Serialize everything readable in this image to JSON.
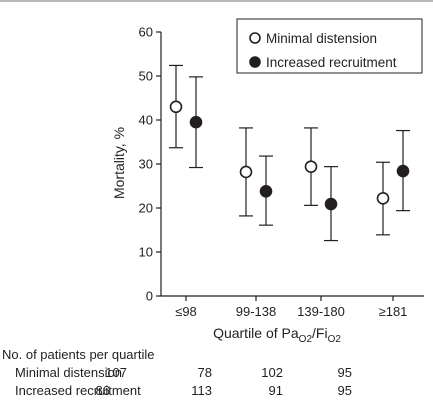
{
  "chart_data": {
    "type": "scatter",
    "subtype": "point-with-error-bars",
    "ylabel": "Mortality, %",
    "xlabel_parts": {
      "pre": "Quartile of Pa",
      "sub1": "O2",
      "mid": "/Fi",
      "sub2": "O2"
    },
    "categories": [
      "≤98",
      "99-138",
      "139-180",
      "≥181"
    ],
    "ylim": [
      0,
      60
    ],
    "yticks": [
      "0",
      "10",
      "20",
      "30",
      "40",
      "50",
      "60"
    ],
    "ytick_values": [
      0,
      10,
      20,
      30,
      40,
      50,
      60
    ],
    "grid": false,
    "legend_position": "top-right",
    "series": [
      {
        "name": "Minimal distension",
        "marker": "open-circle",
        "values": [
          43,
          28.2,
          29.4,
          22.2
        ],
        "lower": [
          33.7,
          18.2,
          20.6,
          13.9
        ],
        "upper": [
          52.4,
          38.2,
          38.2,
          30.4
        ]
      },
      {
        "name": "Increased recruitment",
        "marker": "filled-circle",
        "values": [
          39.5,
          23.8,
          20.9,
          28.4
        ],
        "lower": [
          29.2,
          16.1,
          12.6,
          19.4
        ],
        "upper": [
          49.8,
          31.8,
          29.4,
          37.6
        ]
      }
    ]
  },
  "patients_table": {
    "title": "No. of patients per quartile",
    "rows": [
      {
        "label": "Minimal distension",
        "counts": [
          "107",
          "78",
          "102",
          "95"
        ]
      },
      {
        "label": "Increased recruitment",
        "counts": [
          "86",
          "113",
          "91",
          "95"
        ]
      }
    ]
  },
  "colors": {
    "ink": "#231f20",
    "open_fill": "#ffffff",
    "filled_fill": "#231f20"
  }
}
